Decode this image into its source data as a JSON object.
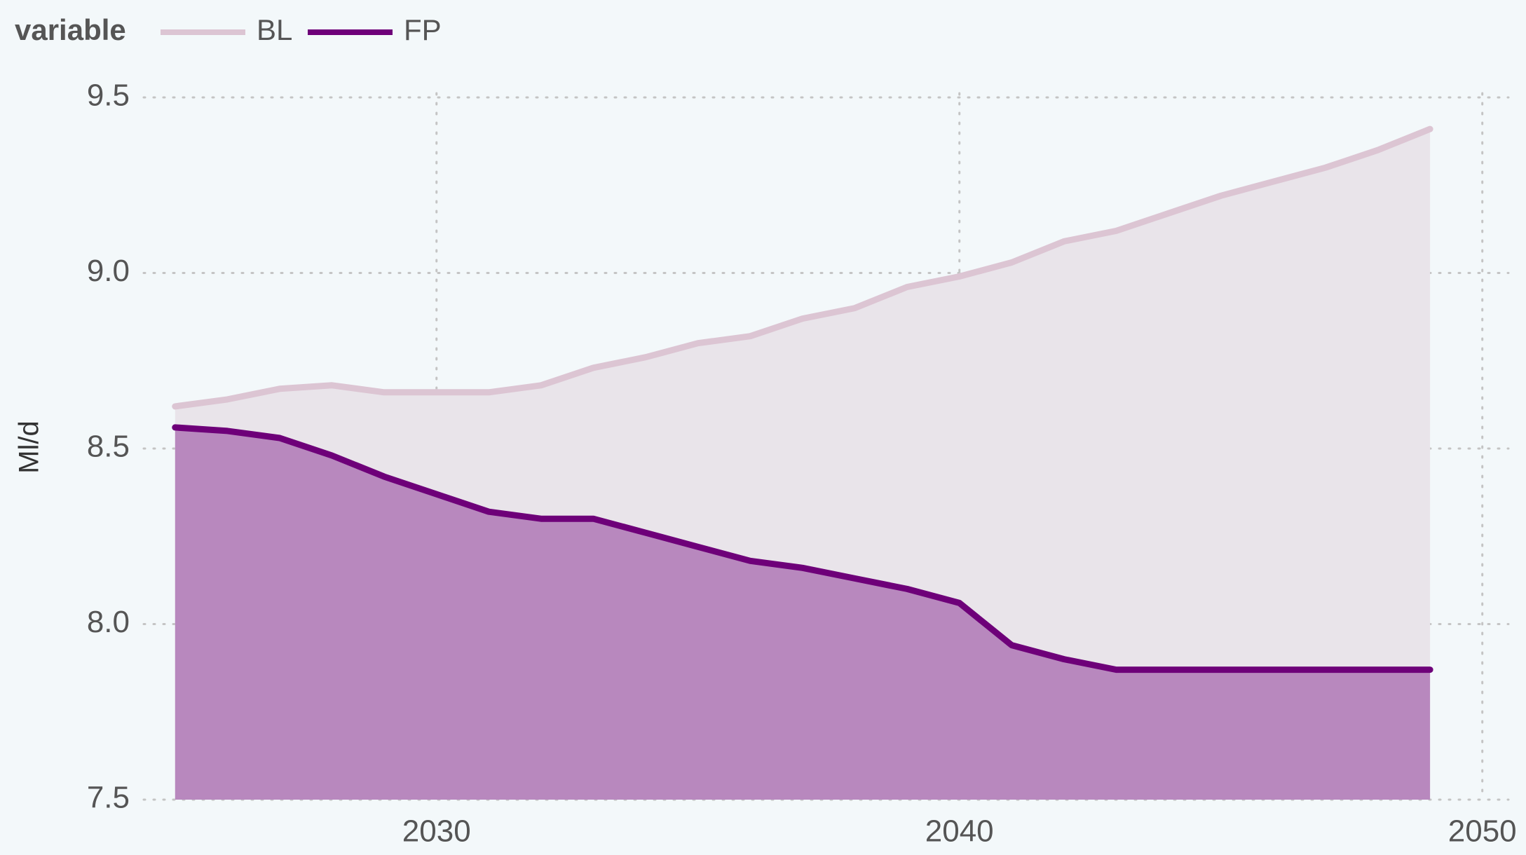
{
  "chart_data": {
    "type": "area",
    "legend_title": "variable",
    "y_label": "Ml/d",
    "x": [
      2025,
      2026,
      2027,
      2028,
      2029,
      2030,
      2031,
      2032,
      2033,
      2034,
      2035,
      2036,
      2037,
      2038,
      2039,
      2040,
      2041,
      2042,
      2043,
      2044,
      2045,
      2046,
      2047,
      2048,
      2049
    ],
    "series": [
      {
        "name": "BL",
        "color": "#dcc5d3",
        "fill": "#e9e4ea",
        "values": [
          8.62,
          8.64,
          8.67,
          8.68,
          8.66,
          8.66,
          8.66,
          8.68,
          8.73,
          8.76,
          8.8,
          8.82,
          8.87,
          8.9,
          8.96,
          8.99,
          9.03,
          9.09,
          9.12,
          9.17,
          9.22,
          9.26,
          9.3,
          9.35,
          9.41
        ]
      },
      {
        "name": "FP",
        "color": "#6e0079",
        "fill": "#b888be",
        "values": [
          8.56,
          8.55,
          8.53,
          8.48,
          8.42,
          8.37,
          8.32,
          8.3,
          8.3,
          8.26,
          8.22,
          8.18,
          8.16,
          8.13,
          8.1,
          8.06,
          7.94,
          7.9,
          7.87,
          7.87,
          7.87,
          7.87,
          7.87,
          7.87,
          7.87
        ]
      }
    ],
    "xlim": [
      2024.4,
      2050.5
    ],
    "xticks": [
      2030,
      2040,
      2050
    ],
    "ylim": [
      7.5,
      9.5
    ],
    "yticks": [
      7.5,
      {
        "value": 8,
        "label": "8.0"
      },
      8.5,
      {
        "value": 9,
        "label": "9.0"
      },
      9.5
    ],
    "grid": true
  }
}
